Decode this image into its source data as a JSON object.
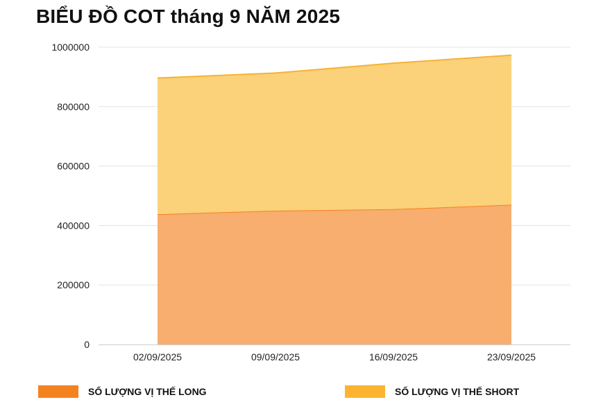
{
  "chart_data": {
    "type": "area",
    "stacked": true,
    "title": "BIỂU ĐỒ COT tháng 9 NĂM 2025",
    "categories": [
      "02/09/2025",
      "09/09/2025",
      "16/09/2025",
      "23/09/2025"
    ],
    "series": [
      {
        "name": "SỐ LƯỢNG VỊ THẾ LONG",
        "values": [
          438000,
          450000,
          455000,
          470000
        ],
        "color": "#F7AE6E",
        "line_color": "#F58220",
        "legend_color": "#F58220"
      },
      {
        "name": "SỐ LƯỢNG VỊ THẾ SHORT",
        "values": [
          458000,
          463000,
          491000,
          503000
        ],
        "color": "#FBD17A",
        "line_color": "#F6B233",
        "legend_color": "#FBB431"
      }
    ],
    "ylim": [
      0,
      1000000
    ],
    "yticks": [
      "0",
      "200000",
      "400000",
      "600000",
      "800000",
      "1000000"
    ],
    "grid": true,
    "legend_position": "bottom"
  }
}
